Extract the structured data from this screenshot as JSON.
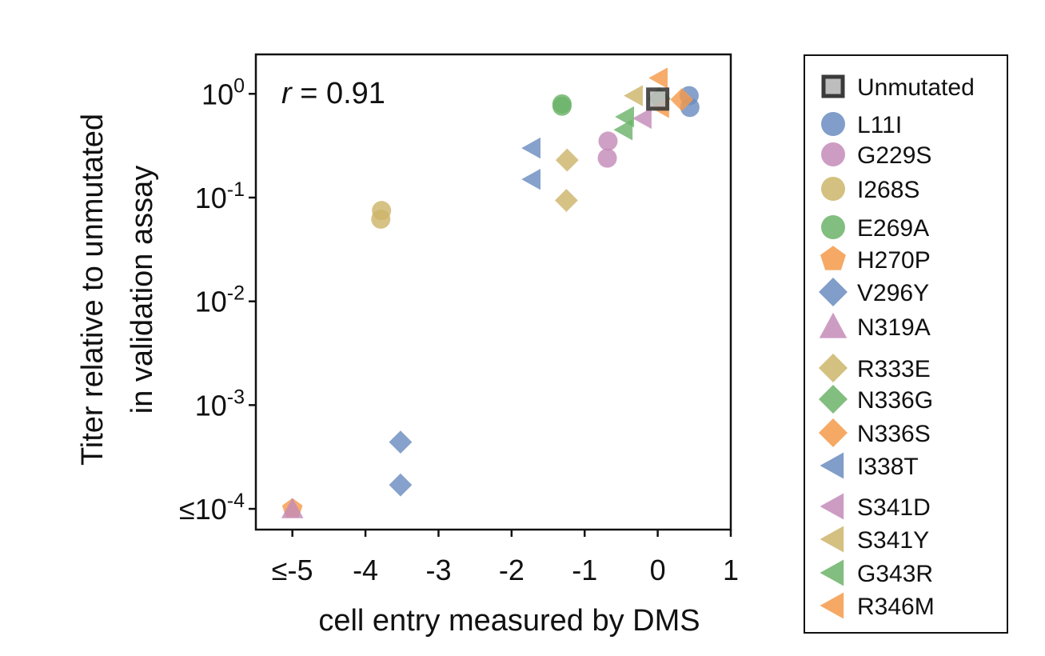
{
  "chart_data": {
    "type": "scatter",
    "xlabel": "cell entry measured by DMS",
    "ylabel_lines": [
      "Titer relative to unmutated",
      "in validation assay"
    ],
    "annotation": {
      "prefix": "r",
      "text": " = 0.91"
    },
    "xlim": [
      -5.5,
      1
    ],
    "ylim_log10": [
      -4.2,
      0.38
    ],
    "y_scale": "log",
    "x_ticks": [
      {
        "value": -5,
        "label": "≤-5"
      },
      {
        "value": -4,
        "label": "-4"
      },
      {
        "value": -3,
        "label": "-3"
      },
      {
        "value": -2,
        "label": "-2"
      },
      {
        "value": -1,
        "label": "-1"
      },
      {
        "value": 0,
        "label": "0"
      },
      {
        "value": 1,
        "label": "1"
      }
    ],
    "y_ticks": [
      {
        "value": 1,
        "prefix": "10",
        "exp": "0"
      },
      {
        "value": 0.1,
        "prefix": "10",
        "exp": "-1"
      },
      {
        "value": 0.01,
        "prefix": "10",
        "exp": "-2"
      },
      {
        "value": 0.001,
        "prefix": "10",
        "exp": "-3"
      },
      {
        "value": 0.0001,
        "prefix": "≤10",
        "exp": "-4"
      }
    ],
    "grid": false,
    "legend_placement": "right-outside",
    "series": [
      {
        "name": "Unmutated",
        "marker": "square",
        "color": "#5a5a5a",
        "points": [
          [
            0,
            0.89
          ]
        ]
      },
      {
        "name": "L11I",
        "marker": "circle",
        "color": "#6b8cbf",
        "points": [
          [
            0.43,
            0.96
          ],
          [
            0.44,
            0.74
          ]
        ]
      },
      {
        "name": "G229S",
        "marker": "circle",
        "color": "#c48bb8",
        "points": [
          [
            -0.68,
            0.35
          ],
          [
            -0.69,
            0.24
          ]
        ]
      },
      {
        "name": "I268S",
        "marker": "circle",
        "color": "#cdb56a",
        "points": [
          [
            -3.78,
            0.075
          ],
          [
            -3.79,
            0.062
          ]
        ]
      },
      {
        "name": "E269A",
        "marker": "circle",
        "color": "#6cb36a",
        "points": [
          [
            -1.31,
            0.8
          ],
          [
            -1.31,
            0.76
          ]
        ]
      },
      {
        "name": "H270P",
        "marker": "pentagon",
        "color": "#f59a4a",
        "points": [
          [
            -5,
            0.0001
          ]
        ]
      },
      {
        "name": "V296Y",
        "marker": "diamond",
        "color": "#6b8cbf",
        "points": [
          [
            -3.52,
            0.00044
          ],
          [
            -3.52,
            0.00017
          ]
        ]
      },
      {
        "name": "N319A",
        "marker": "triangle-up",
        "color": "#c48bb8",
        "points": [
          [
            -5,
            0.0001
          ]
        ]
      },
      {
        "name": "R333E",
        "marker": "diamond",
        "color": "#cdb56a",
        "points": [
          [
            -1.24,
            0.23
          ],
          [
            -1.25,
            0.094
          ]
        ]
      },
      {
        "name": "N336G",
        "marker": "diamond",
        "color": "#6cb36a",
        "points": [
          [
            0.02,
            0.9
          ]
        ]
      },
      {
        "name": "N336S",
        "marker": "diamond",
        "color": "#f59a4a",
        "points": [
          [
            0.33,
            0.88
          ]
        ]
      },
      {
        "name": "I338T",
        "marker": "triangle-left",
        "color": "#6b8cbf",
        "points": [
          [
            -1.72,
            0.3
          ],
          [
            -1.72,
            0.15
          ]
        ]
      },
      {
        "name": "S341D",
        "marker": "triangle-left",
        "color": "#c48bb8",
        "points": [
          [
            -0.2,
            0.58
          ]
        ]
      },
      {
        "name": "S341Y",
        "marker": "triangle-left",
        "color": "#cdb56a",
        "points": [
          [
            -0.32,
            0.96
          ]
        ]
      },
      {
        "name": "G343R",
        "marker": "triangle-left",
        "color": "#6cb36a",
        "points": [
          [
            -0.44,
            0.6
          ],
          [
            -0.46,
            0.45
          ]
        ]
      },
      {
        "name": "R346M",
        "marker": "triangle-left",
        "color": "#f59a4a",
        "points": [
          [
            0.02,
            1.42
          ],
          [
            0.04,
            0.74
          ]
        ]
      }
    ]
  }
}
